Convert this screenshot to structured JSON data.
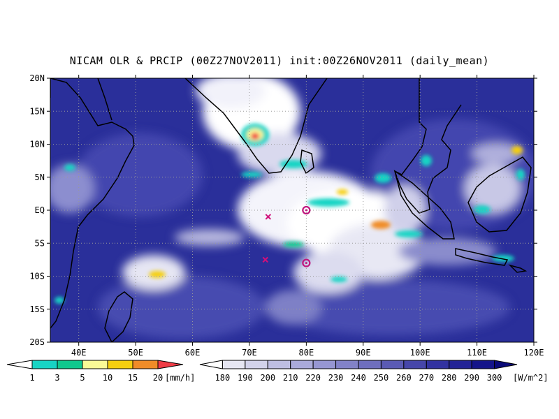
{
  "title": "NICAM OLR & PRCIP (00Z27NOV2011) init:00Z26NOV2011 (daily_mean)",
  "map": {
    "lon_range": [
      35,
      120
    ],
    "lat_range": [
      -20,
      20
    ],
    "lat_ticks": [
      {
        "value": 20,
        "label": "20N"
      },
      {
        "value": 15,
        "label": "15N"
      },
      {
        "value": 10,
        "label": "10N"
      },
      {
        "value": 5,
        "label": "5N"
      },
      {
        "value": 0,
        "label": "EQ"
      },
      {
        "value": -5,
        "label": "5S"
      },
      {
        "value": -10,
        "label": "10S"
      },
      {
        "value": -15,
        "label": "15S"
      },
      {
        "value": -20,
        "label": "20S"
      }
    ],
    "lon_ticks": [
      {
        "value": 40,
        "label": "40E"
      },
      {
        "value": 50,
        "label": "50E"
      },
      {
        "value": 60,
        "label": "60E"
      },
      {
        "value": 70,
        "label": "70E"
      },
      {
        "value": 80,
        "label": "80E"
      },
      {
        "value": 90,
        "label": "90E"
      },
      {
        "value": 100,
        "label": "100E"
      },
      {
        "value": 110,
        "label": "110E"
      },
      {
        "value": 120,
        "label": "120E"
      }
    ],
    "gridlines": "dotted",
    "background_color": "#2a2f9a",
    "markers": [
      {
        "type": "circle",
        "lon": 80,
        "lat": 0,
        "color": "#c0187f"
      },
      {
        "type": "circle",
        "lon": 80,
        "lat": -8,
        "color": "#c0187f"
      },
      {
        "type": "cross",
        "lon": 73.3,
        "lat": -1,
        "color": "#d0107a"
      },
      {
        "type": "cross",
        "lon": 72.8,
        "lat": -7.5,
        "color": "#d0107a"
      }
    ]
  },
  "precip_colorbar": {
    "unit": "[mm/h]",
    "labels": [
      "1",
      "3",
      "5",
      "10",
      "15",
      "20"
    ],
    "colors": [
      "#ffffff",
      "#17d4c4",
      "#10c88e",
      "#fafa96",
      "#f5cf10",
      "#f08c28",
      "#f03c46"
    ]
  },
  "olr_colorbar": {
    "unit": "[W/m^2]",
    "labels": [
      "180",
      "190",
      "200",
      "210",
      "220",
      "230",
      "240",
      "250",
      "260",
      "270",
      "280",
      "290",
      "300"
    ],
    "colors": [
      "#ffffff",
      "#e6e6f2",
      "#d2d2ea",
      "#bebee2",
      "#aaaada",
      "#9696d2",
      "#8282c8",
      "#6e6ebe",
      "#5a5ab4",
      "#4646aa",
      "#3232a0",
      "#232396",
      "#14148a",
      "#0a0a78"
    ]
  }
}
